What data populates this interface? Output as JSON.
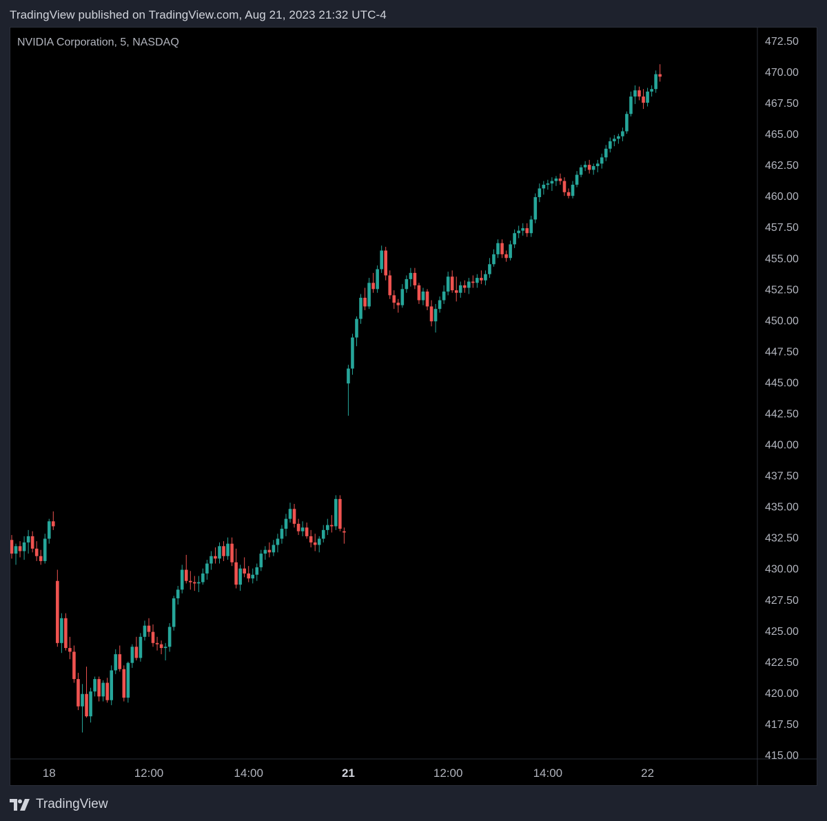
{
  "header": {
    "published": "TradingView published on TradingView.com, Aug 21, 2023 21:32 UTC-4"
  },
  "symbol": {
    "label": "NVIDIA Corporation, 5, NASDAQ"
  },
  "footer": {
    "brand": "TradingView"
  },
  "colors": {
    "up": "#26a69a",
    "down": "#ef5350",
    "axis_text": "#b2b5be",
    "background": "#000000",
    "frame": "#1e222d"
  },
  "chart_data": {
    "type": "candlestick",
    "title": "",
    "ylim": [
      415,
      473
    ],
    "y_ticks": [
      "472.50",
      "470.00",
      "467.50",
      "465.00",
      "462.50",
      "460.00",
      "457.50",
      "455.00",
      "452.50",
      "450.00",
      "447.50",
      "445.00",
      "442.50",
      "440.00",
      "437.50",
      "435.00",
      "432.50",
      "430.00",
      "427.50",
      "425.00",
      "422.50",
      "420.00",
      "417.50",
      "415.00"
    ],
    "x_ticks": [
      {
        "label": "18",
        "index": 9,
        "bold": false
      },
      {
        "label": "12:00",
        "index": 33,
        "bold": false
      },
      {
        "label": "14:00",
        "index": 57,
        "bold": false
      },
      {
        "label": "21",
        "index": 81,
        "bold": true
      },
      {
        "label": "12:00",
        "index": 105,
        "bold": false
      },
      {
        "label": "14:00",
        "index": 129,
        "bold": false
      },
      {
        "label": "22",
        "index": 153,
        "bold": false
      }
    ],
    "total_slots": 164,
    "candles": [
      [
        432.3,
        432.7,
        430.8,
        431.2
      ],
      [
        431.2,
        432.0,
        430.3,
        431.8
      ],
      [
        431.8,
        432.2,
        430.9,
        431.4
      ],
      [
        431.4,
        432.6,
        430.7,
        432.1
      ],
      [
        432.1,
        433.1,
        431.2,
        432.6
      ],
      [
        432.6,
        433.0,
        431.3,
        431.6
      ],
      [
        431.6,
        432.2,
        430.6,
        431.0
      ],
      [
        431.0,
        431.5,
        430.3,
        430.6
      ],
      [
        430.6,
        432.8,
        430.4,
        432.4
      ],
      [
        432.4,
        434.0,
        432.0,
        433.8
      ],
      [
        433.8,
        434.6,
        433.1,
        433.4
      ],
      [
        429.0,
        429.9,
        423.7,
        424.0
      ],
      [
        424.0,
        426.4,
        423.2,
        426.0
      ],
      [
        426.0,
        426.4,
        423.4,
        423.6
      ],
      [
        423.6,
        424.5,
        422.7,
        423.3
      ],
      [
        423.3,
        423.8,
        420.8,
        421.1
      ],
      [
        421.1,
        421.6,
        418.6,
        418.9
      ],
      [
        418.9,
        420.7,
        416.8,
        419.9
      ],
      [
        419.9,
        422.1,
        418.0,
        418.1
      ],
      [
        418.1,
        420.4,
        417.6,
        420.1
      ],
      [
        420.1,
        421.3,
        419.7,
        421.1
      ],
      [
        421.1,
        421.3,
        419.3,
        419.7
      ],
      [
        419.7,
        421.0,
        419.3,
        420.8
      ],
      [
        420.8,
        421.2,
        419.2,
        419.4
      ],
      [
        419.4,
        422.2,
        419.0,
        421.8
      ],
      [
        421.8,
        423.5,
        421.5,
        423.1
      ],
      [
        423.1,
        423.8,
        421.7,
        421.9
      ],
      [
        421.9,
        422.2,
        419.3,
        419.6
      ],
      [
        419.6,
        422.5,
        419.2,
        422.4
      ],
      [
        422.4,
        423.9,
        422.0,
        423.7
      ],
      [
        423.7,
        424.5,
        422.6,
        422.8
      ],
      [
        422.8,
        424.8,
        422.5,
        424.5
      ],
      [
        424.5,
        425.8,
        424.2,
        425.4
      ],
      [
        425.4,
        426.0,
        424.5,
        424.9
      ],
      [
        424.9,
        425.5,
        423.7,
        424.0
      ],
      [
        424.0,
        424.5,
        423.4,
        423.9
      ],
      [
        423.9,
        424.2,
        423.1,
        423.6
      ],
      [
        423.6,
        424.0,
        422.6,
        423.7
      ],
      [
        423.7,
        425.6,
        423.3,
        425.3
      ],
      [
        425.3,
        427.8,
        425.0,
        427.6
      ],
      [
        427.6,
        428.6,
        427.1,
        428.3
      ],
      [
        428.3,
        430.3,
        428.0,
        429.9
      ],
      [
        429.9,
        431.1,
        428.8,
        429.0
      ],
      [
        429.0,
        429.8,
        428.3,
        428.9
      ],
      [
        428.9,
        429.4,
        428.2,
        428.8
      ],
      [
        428.8,
        429.4,
        428.1,
        428.9
      ],
      [
        428.9,
        430.0,
        428.7,
        429.6
      ],
      [
        429.6,
        430.7,
        429.1,
        430.4
      ],
      [
        430.4,
        431.4,
        429.9,
        431.0
      ],
      [
        431.0,
        431.7,
        430.4,
        430.8
      ],
      [
        430.8,
        432.1,
        430.4,
        431.8
      ],
      [
        431.8,
        432.2,
        430.6,
        431.0
      ],
      [
        431.0,
        432.5,
        430.7,
        432.0
      ],
      [
        432.0,
        432.5,
        430.2,
        430.5
      ],
      [
        430.5,
        431.6,
        428.4,
        428.7
      ],
      [
        428.7,
        430.3,
        428.2,
        430.0
      ],
      [
        430.0,
        430.9,
        429.3,
        429.6
      ],
      [
        429.6,
        430.2,
        428.9,
        429.2
      ],
      [
        429.2,
        430.0,
        428.8,
        429.5
      ],
      [
        429.5,
        430.4,
        429.0,
        430.1
      ],
      [
        430.1,
        431.5,
        429.8,
        431.2
      ],
      [
        431.2,
        431.8,
        430.7,
        431.5
      ],
      [
        431.5,
        432.1,
        430.9,
        431.3
      ],
      [
        431.3,
        432.3,
        431.0,
        431.9
      ],
      [
        431.9,
        432.8,
        431.3,
        432.4
      ],
      [
        432.4,
        433.5,
        432.0,
        433.2
      ],
      [
        433.2,
        434.4,
        432.6,
        434.0
      ],
      [
        434.0,
        435.3,
        433.7,
        434.8
      ],
      [
        434.8,
        435.2,
        433.3,
        433.6
      ],
      [
        433.6,
        434.0,
        432.7,
        433.0
      ],
      [
        433.0,
        433.8,
        432.6,
        433.3
      ],
      [
        433.3,
        433.7,
        432.4,
        432.6
      ],
      [
        432.6,
        433.1,
        431.7,
        432.1
      ],
      [
        432.1,
        432.8,
        431.4,
        431.9
      ],
      [
        431.9,
        432.6,
        431.3,
        432.4
      ],
      [
        432.4,
        433.5,
        432.1,
        433.1
      ],
      [
        433.1,
        434.0,
        432.7,
        433.5
      ],
      [
        433.5,
        434.3,
        432.9,
        433.4
      ],
      [
        433.4,
        435.9,
        433.1,
        435.6
      ],
      [
        435.6,
        435.9,
        433.0,
        433.2
      ],
      [
        433.0,
        433.3,
        432.0,
        432.9
      ],
      [
        444.9,
        446.4,
        442.3,
        446.1
      ],
      [
        446.1,
        448.9,
        445.6,
        448.6
      ],
      [
        448.6,
        450.3,
        447.9,
        450.1
      ],
      [
        450.1,
        452.1,
        449.7,
        451.8
      ],
      [
        451.8,
        452.6,
        450.8,
        451.1
      ],
      [
        451.1,
        453.4,
        450.9,
        453.0
      ],
      [
        453.0,
        453.8,
        452.2,
        452.5
      ],
      [
        452.5,
        454.4,
        452.2,
        454.1
      ],
      [
        454.1,
        456.0,
        453.8,
        455.6
      ],
      [
        455.6,
        455.9,
        453.2,
        453.6
      ],
      [
        453.6,
        454.0,
        451.7,
        452.0
      ],
      [
        452.0,
        452.4,
        450.9,
        451.4
      ],
      [
        451.4,
        451.7,
        450.6,
        451.2
      ],
      [
        451.2,
        452.9,
        451.0,
        452.5
      ],
      [
        452.5,
        453.6,
        452.2,
        453.3
      ],
      [
        453.3,
        454.2,
        452.7,
        453.8
      ],
      [
        453.8,
        454.2,
        452.5,
        452.8
      ],
      [
        452.8,
        453.0,
        451.3,
        451.6
      ],
      [
        451.6,
        452.6,
        451.2,
        452.3
      ],
      [
        452.3,
        452.5,
        450.8,
        451.1
      ],
      [
        451.1,
        451.6,
        449.5,
        449.9
      ],
      [
        449.9,
        451.3,
        449.0,
        450.9
      ],
      [
        450.9,
        451.9,
        450.6,
        451.6
      ],
      [
        451.6,
        452.8,
        451.3,
        452.3
      ],
      [
        452.3,
        453.9,
        452.0,
        453.5
      ],
      [
        453.5,
        454.0,
        452.2,
        452.4
      ],
      [
        452.4,
        453.5,
        451.5,
        452.2
      ],
      [
        452.2,
        453.1,
        451.8,
        452.8
      ],
      [
        452.8,
        453.2,
        452.2,
        452.6
      ],
      [
        452.6,
        453.4,
        452.1,
        453.1
      ],
      [
        453.1,
        453.6,
        452.6,
        453.0
      ],
      [
        453.0,
        453.7,
        452.6,
        453.4
      ],
      [
        453.4,
        454.0,
        452.9,
        453.2
      ],
      [
        453.2,
        454.0,
        452.8,
        453.7
      ],
      [
        453.7,
        455.0,
        453.4,
        454.5
      ],
      [
        454.5,
        455.7,
        454.3,
        455.3
      ],
      [
        455.3,
        456.5,
        455.0,
        456.2
      ],
      [
        456.2,
        456.5,
        455.0,
        455.3
      ],
      [
        455.3,
        455.6,
        454.7,
        455.0
      ],
      [
        455.0,
        456.4,
        454.8,
        456.1
      ],
      [
        456.1,
        457.3,
        455.8,
        457.0
      ],
      [
        457.0,
        457.6,
        456.6,
        457.2
      ],
      [
        457.2,
        457.8,
        456.8,
        457.4
      ],
      [
        457.4,
        457.8,
        456.7,
        457.0
      ],
      [
        457.0,
        458.4,
        456.7,
        458.1
      ],
      [
        458.1,
        460.2,
        457.8,
        459.9
      ],
      [
        459.9,
        461.0,
        459.5,
        460.6
      ],
      [
        460.6,
        461.2,
        460.1,
        460.9
      ],
      [
        460.9,
        461.3,
        460.5,
        461.0
      ],
      [
        461.0,
        461.5,
        460.4,
        461.2
      ],
      [
        461.2,
        461.6,
        460.8,
        461.4
      ],
      [
        461.4,
        461.8,
        460.9,
        461.2
      ],
      [
        461.2,
        461.5,
        460.0,
        460.3
      ],
      [
        460.3,
        460.6,
        459.8,
        460.0
      ],
      [
        460.0,
        461.2,
        459.8,
        460.9
      ],
      [
        460.9,
        462.0,
        460.7,
        461.7
      ],
      [
        461.7,
        462.5,
        461.5,
        462.3
      ],
      [
        462.3,
        462.8,
        462.0,
        462.5
      ],
      [
        462.5,
        462.9,
        461.8,
        462.1
      ],
      [
        462.1,
        462.6,
        461.7,
        462.4
      ],
      [
        462.4,
        462.9,
        461.9,
        462.6
      ],
      [
        462.6,
        463.4,
        462.2,
        463.1
      ],
      [
        463.1,
        464.1,
        462.8,
        463.8
      ],
      [
        463.8,
        464.7,
        463.5,
        464.4
      ],
      [
        464.4,
        464.9,
        464.0,
        464.6
      ],
      [
        464.6,
        465.0,
        464.2,
        464.8
      ],
      [
        464.8,
        465.5,
        464.4,
        465.2
      ],
      [
        465.2,
        466.8,
        465.0,
        466.6
      ],
      [
        466.6,
        468.4,
        466.4,
        468.0
      ],
      [
        468.0,
        468.9,
        467.4,
        468.5
      ],
      [
        468.5,
        468.8,
        467.7,
        468.0
      ],
      [
        468.0,
        468.6,
        467.0,
        467.5
      ],
      [
        467.5,
        468.7,
        467.2,
        468.4
      ],
      [
        468.4,
        468.9,
        468.0,
        468.6
      ],
      [
        468.6,
        470.1,
        468.3,
        469.8
      ],
      [
        469.8,
        470.6,
        469.2,
        469.6
      ]
    ]
  }
}
